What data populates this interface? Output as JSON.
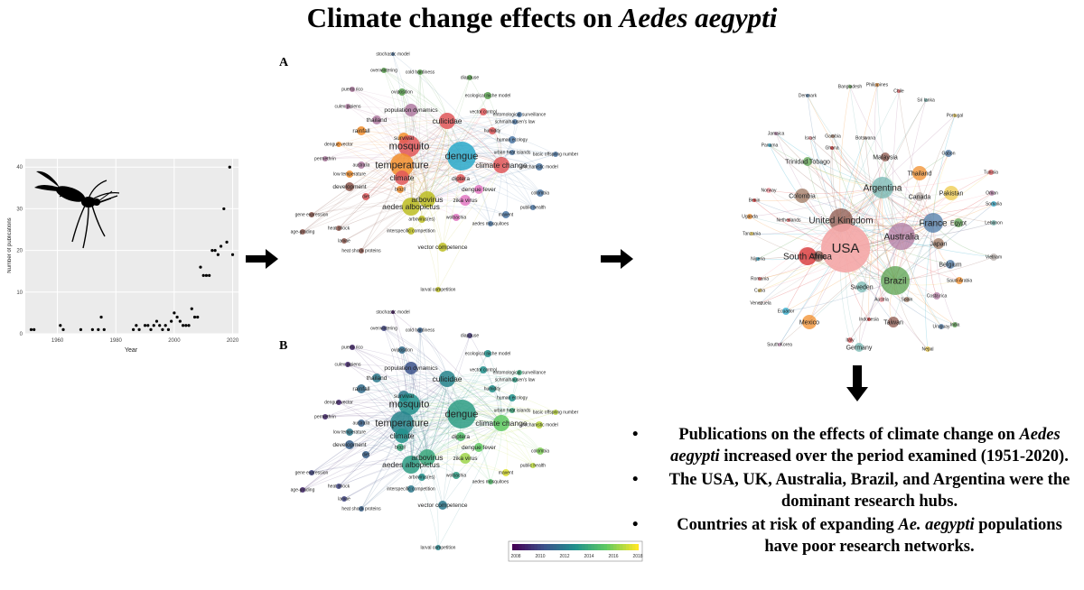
{
  "title": {
    "prefix": "Climate change effects on ",
    "species": "Aedes aegypti"
  },
  "chart_data": {
    "type": "scatter",
    "title": "",
    "xlabel": "Year",
    "ylabel": "Number of publications",
    "xlim": [
      1949,
      2022
    ],
    "ylim": [
      0,
      42
    ],
    "xticks": [
      1960,
      1980,
      2000,
      2020
    ],
    "yticks": [
      0,
      10,
      20,
      30,
      40
    ],
    "points": [
      [
        1951,
        1
      ],
      [
        1952,
        1
      ],
      [
        1961,
        2
      ],
      [
        1962,
        1
      ],
      [
        1968,
        1
      ],
      [
        1972,
        1
      ],
      [
        1974,
        1
      ],
      [
        1975,
        4
      ],
      [
        1976,
        1
      ],
      [
        1986,
        1
      ],
      [
        1987,
        2
      ],
      [
        1988,
        1
      ],
      [
        1990,
        2
      ],
      [
        1991,
        2
      ],
      [
        1992,
        1
      ],
      [
        1993,
        2
      ],
      [
        1994,
        3
      ],
      [
        1995,
        2
      ],
      [
        1996,
        1
      ],
      [
        1997,
        2
      ],
      [
        1998,
        1
      ],
      [
        1999,
        3
      ],
      [
        2000,
        5
      ],
      [
        2001,
        4
      ],
      [
        2002,
        3
      ],
      [
        2003,
        2
      ],
      [
        2004,
        2
      ],
      [
        2005,
        2
      ],
      [
        2006,
        6
      ],
      [
        2007,
        4
      ],
      [
        2008,
        4
      ],
      [
        2009,
        16
      ],
      [
        2010,
        14
      ],
      [
        2011,
        14
      ],
      [
        2012,
        14
      ],
      [
        2013,
        20
      ],
      [
        2014,
        20
      ],
      [
        2015,
        19
      ],
      [
        2016,
        21
      ],
      [
        2017,
        30
      ],
      [
        2018,
        22
      ],
      [
        2019,
        40
      ],
      [
        2020,
        19
      ]
    ]
  },
  "panel_labels": {
    "a": "A",
    "b": "B"
  },
  "keywords": [
    "stochastic model",
    "overwintering",
    "cold hardiness",
    "diapause",
    "puerto rico",
    "oviposition",
    "ecological niche model",
    "culex pipiens",
    "population dynamics",
    "vector control",
    "entomological surveillance",
    "thailand",
    "culicidae",
    "schmalhausen's law",
    "rainfall",
    "survival",
    "humidity",
    "dengue vector",
    "mosquito",
    "human ecology",
    "urban heat islands",
    "dengue",
    "permethrin",
    "australia",
    "temperature",
    "climate change",
    "basic offspring number",
    "low temperature",
    "climate",
    "mechanistic model",
    "development",
    "brazil",
    "diptera",
    "dengue fever",
    "diet",
    "arbovirus",
    "zika virus",
    "colombia",
    "aedes albopictus",
    "maxent",
    "public health",
    "arbovirus(es)",
    "wolbachia",
    "aedes mosquitoes",
    "gene expression",
    "interspecific competition",
    "age-grading",
    "heat shock",
    "larvae",
    "vector competence",
    "heat shock proteins",
    "larval competition"
  ],
  "legend_years": [
    "2008",
    "2010",
    "2012",
    "2014",
    "2016",
    "2018"
  ],
  "countries": [
    "Denmark",
    "Bangladesh",
    "Philippines",
    "Chile",
    "Sri lanka",
    "Portugal",
    "Jamaica",
    "Israel",
    "Gambia",
    "Botswana",
    "Panama",
    "Ghana",
    "Malaysia",
    "Gabon",
    "Trinidad Tobago",
    "Thailand",
    "Tunisia",
    "Argentina",
    "Pakistan",
    "Oman",
    "Norway",
    "Colombia",
    "Canada",
    "Somalia",
    "Benin",
    "United Kingdom",
    "France",
    "Egypt",
    "Uganda",
    "Netherlands",
    "Lebanon",
    "Tanzania",
    "Australia",
    "USA",
    "Japan",
    "Vietnam",
    "Nigeria",
    "South Africa",
    "China",
    "Belgium",
    "Brazil",
    "Saudi Arabia",
    "Romania",
    "Sweden",
    "Cuba",
    "Costa rica",
    "Austria",
    "Spain",
    "Venezuela",
    "Ecuador",
    "Indonesia",
    "Taiwan",
    "Uruguay",
    "India",
    "Mexico",
    "Italy",
    "Germany",
    "Nepal",
    "South Korea"
  ],
  "bullets": [
    {
      "pre": "Publications on the effects of climate change on ",
      "em": "Aedes aegypti",
      "post": " increased over the period examined (1951-2020)."
    },
    {
      "pre": "The USA, UK, Australia, Brazil, and Argentina were the dominant research hubs.",
      "em": "",
      "post": ""
    },
    {
      "pre": "Countries at risk of expanding ",
      "em": "Ae. aegypti",
      "post": " populations have poor research networks."
    }
  ],
  "bullet_symbol": "•"
}
